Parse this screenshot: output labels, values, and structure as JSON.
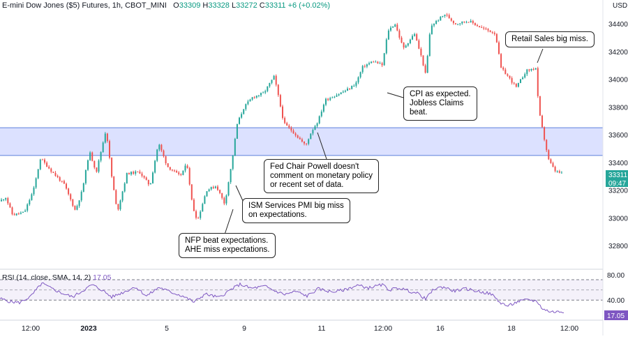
{
  "header": {
    "symbol": "E-mini Dow Jones ($5) Futures, 1h, CBOT_MINI",
    "o_label": "O",
    "o_value": "33309",
    "h_label": "H",
    "h_value": "33328",
    "l_label": "L",
    "l_value": "33272",
    "c_label": "C",
    "c_value": "33311",
    "change": "+6 (+0.02%)"
  },
  "price_axis": {
    "currency": "USD",
    "last_price": "33311",
    "countdown": "09:47"
  },
  "rsi": {
    "label": "RSI (14, close, SMA, 14, 2)",
    "value": "17.05",
    "levels": [
      "80.00",
      "40.00"
    ],
    "last_label": "17.05"
  },
  "annotations": [
    "Retail Sales big miss.",
    "CPI as expected.\nJobless Claims\nbeat.",
    "Fed Chair Powell doesn't\ncomment on monetary policy\nor recent set of data.",
    "ISM Services PMI big miss\non expectations.",
    "NFP beat expectations.\nAHE miss expectations."
  ],
  "colors": {
    "up": "#26a69a",
    "down": "#ef5350",
    "zone_fill": "#d6dcff",
    "zone_line": "#5b7fdb",
    "rsi_line": "#7e57c2",
    "rsi_band": "#ede7f6",
    "last_tag": "#26a69a",
    "rsi_tag": "#7e57c2"
  },
  "chart_data": [
    {
      "type": "candlestick",
      "title": "E-mini Dow Jones ($5) Futures, 1h, CBOT_MINI",
      "y_unit": "USD",
      "ylim": [
        32680,
        34520
      ],
      "y_ticks": [
        32800,
        33000,
        33200,
        33400,
        33600,
        33800,
        34000,
        34200,
        34400
      ],
      "x_tick_labels": [
        "12:00",
        "2023",
        "5",
        "9",
        "11",
        "12:00",
        "16",
        "18",
        "12:00"
      ],
      "zone": [
        33450,
        33650
      ],
      "path": [
        [
          0,
          33120
        ],
        [
          8,
          33150
        ],
        [
          18,
          33020
        ],
        [
          35,
          33040
        ],
        [
          48,
          33200
        ],
        [
          58,
          33430
        ],
        [
          75,
          33330
        ],
        [
          92,
          33240
        ],
        [
          108,
          33050
        ],
        [
          118,
          33200
        ],
        [
          128,
          33480
        ],
        [
          138,
          33330
        ],
        [
          152,
          33640
        ],
        [
          160,
          33300
        ],
        [
          168,
          33040
        ],
        [
          182,
          33320
        ],
        [
          200,
          33330
        ],
        [
          215,
          33230
        ],
        [
          227,
          33540
        ],
        [
          240,
          33370
        ],
        [
          258,
          33300
        ],
        [
          268,
          33390
        ],
        [
          276,
          33080
        ],
        [
          283,
          32980
        ],
        [
          296,
          33200
        ],
        [
          310,
          33230
        ],
        [
          322,
          33100
        ],
        [
          332,
          33390
        ],
        [
          340,
          33680
        ],
        [
          350,
          33800
        ],
        [
          362,
          33870
        ],
        [
          378,
          33900
        ],
        [
          393,
          34020
        ],
        [
          400,
          33850
        ],
        [
          407,
          33680
        ],
        [
          420,
          33620
        ],
        [
          438,
          33520
        ],
        [
          446,
          33620
        ],
        [
          456,
          33700
        ],
        [
          466,
          33850
        ],
        [
          488,
          33900
        ],
        [
          500,
          33930
        ],
        [
          510,
          33970
        ],
        [
          520,
          34090
        ],
        [
          535,
          34130
        ],
        [
          548,
          34100
        ],
        [
          556,
          34350
        ],
        [
          566,
          34400
        ],
        [
          578,
          34220
        ],
        [
          594,
          34330
        ],
        [
          605,
          34140
        ],
        [
          610,
          34030
        ],
        [
          617,
          34380
        ],
        [
          626,
          34420
        ],
        [
          638,
          34470
        ],
        [
          652,
          34400
        ],
        [
          672,
          34420
        ],
        [
          690,
          34370
        ],
        [
          710,
          34330
        ],
        [
          718,
          34080
        ],
        [
          728,
          34020
        ],
        [
          740,
          33940
        ],
        [
          754,
          34060
        ],
        [
          768,
          34080
        ],
        [
          772,
          33780
        ],
        [
          778,
          33620
        ],
        [
          786,
          33420
        ],
        [
          795,
          33340
        ],
        [
          808,
          33311
        ]
      ],
      "rsi_points": [
        [
          0,
          43
        ],
        [
          14,
          37
        ],
        [
          28,
          35
        ],
        [
          44,
          47
        ],
        [
          60,
          73
        ],
        [
          72,
          64
        ],
        [
          88,
          54
        ],
        [
          104,
          46
        ],
        [
          118,
          58
        ],
        [
          132,
          70
        ],
        [
          146,
          60
        ],
        [
          160,
          46
        ],
        [
          176,
          55
        ],
        [
          194,
          66
        ],
        [
          210,
          48
        ],
        [
          228,
          65
        ],
        [
          244,
          56
        ],
        [
          262,
          48
        ],
        [
          278,
          36
        ],
        [
          294,
          52
        ],
        [
          314,
          45
        ],
        [
          330,
          60
        ],
        [
          344,
          71
        ],
        [
          360,
          63
        ],
        [
          380,
          67
        ],
        [
          394,
          58
        ],
        [
          408,
          51
        ],
        [
          424,
          57
        ],
        [
          440,
          48
        ],
        [
          456,
          62
        ],
        [
          476,
          56
        ],
        [
          494,
          60
        ],
        [
          512,
          69
        ],
        [
          528,
          64
        ],
        [
          548,
          70
        ],
        [
          558,
          60
        ],
        [
          572,
          64
        ],
        [
          586,
          58
        ],
        [
          600,
          52
        ],
        [
          610,
          42
        ],
        [
          622,
          62
        ],
        [
          636,
          66
        ],
        [
          650,
          58
        ],
        [
          668,
          62
        ],
        [
          686,
          57
        ],
        [
          704,
          52
        ],
        [
          716,
          36
        ],
        [
          728,
          28
        ],
        [
          742,
          37
        ],
        [
          758,
          41
        ],
        [
          770,
          37
        ],
        [
          778,
          22
        ],
        [
          790,
          17
        ],
        [
          808,
          17
        ]
      ]
    }
  ]
}
